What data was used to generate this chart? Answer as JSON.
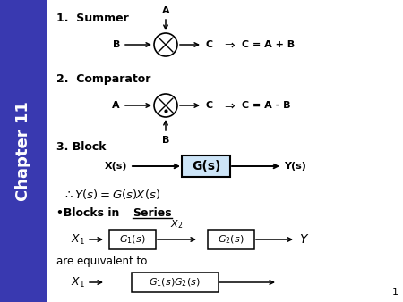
{
  "bg_color": "#ffffff",
  "sidebar_color": "#3939b0",
  "title_text": "Chapter 11",
  "page_number": "1",
  "sec1_label": "1.  Summer",
  "sec2_label": "2.  Comparator",
  "sec3_label": "3. Block",
  "eq1": "C = A + B",
  "eq2": "C = A - B",
  "gs_box_color": "#cce4f7",
  "are_equiv": "are equivalent to..."
}
